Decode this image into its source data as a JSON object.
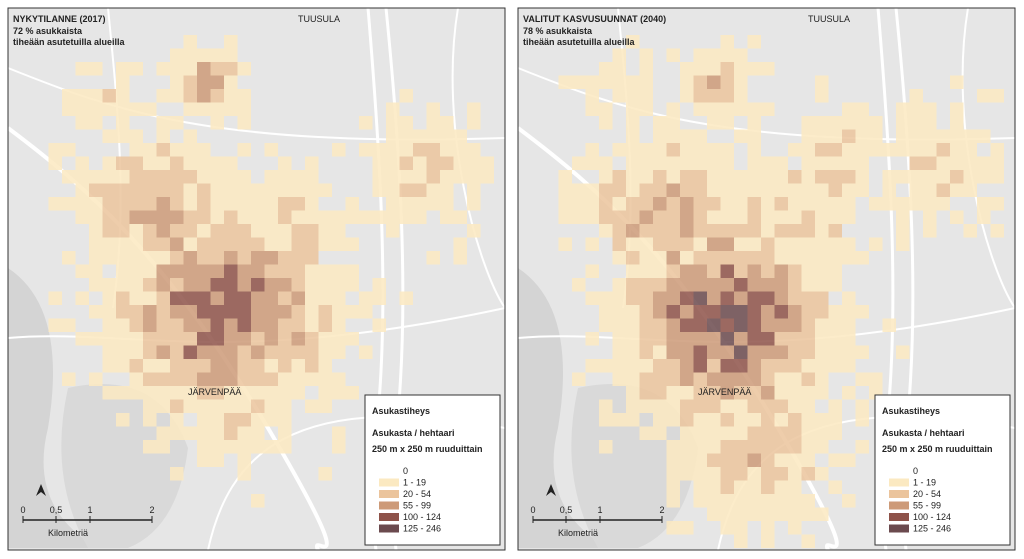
{
  "panels": [
    {
      "title": "NYKYTILANNE (2017)",
      "subtitle": [
        "72 % asukkaista",
        "tiheään asutetuilla alueilla"
      ],
      "places": [
        "TUUSULA",
        "JÄRVENPÄÄ"
      ],
      "legend": {
        "title": "Asukastiheys",
        "lines": [
          "Asukasta / hehtaari",
          "250 m x 250 m ruuduittain"
        ],
        "classes": [
          {
            "label": "0",
            "color": "#ffffff"
          },
          {
            "label": "1 - 19",
            "color": "#fbe9c1"
          },
          {
            "label": "20 - 54",
            "color": "#ebc49c"
          },
          {
            "label": "55 - 99",
            "color": "#cd9a78"
          },
          {
            "label": "100 - 124",
            "color": "#8e5249"
          },
          {
            "label": "125 - 246",
            "color": "#6b4a4e"
          }
        ]
      },
      "scale": {
        "ticks": [
          "0",
          "0,5",
          "1",
          "2"
        ],
        "unit": "Kilometriä"
      }
    },
    {
      "title": "VALITUT KASVUSUUNNAT (2040)",
      "subtitle": [
        "78 % asukkaista",
        "tiheään asutetuilla alueilla"
      ],
      "places": [
        "TUUSULA",
        "JÄRVENPÄÄ"
      ],
      "legend": {
        "title": "Asukastiheys",
        "lines": [
          "Asukasta / hehtaari",
          "250 m x 250 m ruuduittain"
        ],
        "classes": [
          {
            "label": "0",
            "color": "#ffffff"
          },
          {
            "label": "1 - 19",
            "color": "#fbe9c1"
          },
          {
            "label": "20 - 54",
            "color": "#ebc49c"
          },
          {
            "label": "55 - 99",
            "color": "#cd9a78"
          },
          {
            "label": "100 - 124",
            "color": "#8e5249"
          },
          {
            "label": "125 - 246",
            "color": "#6b4a4e"
          }
        ]
      },
      "scale": {
        "ticks": [
          "0",
          "0,5",
          "1",
          "2"
        ],
        "unit": "Kilometriä"
      }
    }
  ]
}
